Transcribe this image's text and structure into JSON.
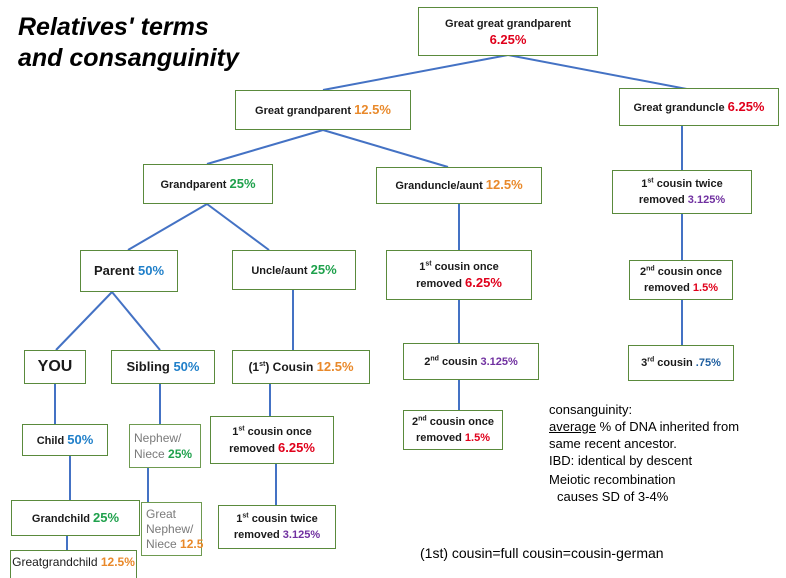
{
  "title": {
    "line1": "Relatives' terms",
    "line2": "and consanguinity"
  },
  "nodes": {
    "great_great_grandparent": {
      "label": "Great great grandparent",
      "pct": "6.25%"
    },
    "great_grandparent": {
      "label": "Great grandparent ",
      "pct": "12.5%"
    },
    "great_granduncle": {
      "label": "Great granduncle ",
      "pct": "6.25%"
    },
    "grandparent": {
      "label": "Grandparent ",
      "pct": "25%"
    },
    "granduncle_aunt": {
      "label": "Granduncle/aunt ",
      "pct": "12.5%"
    },
    "first_cousin_twice_removed_top": {
      "sup": "st",
      "label1": "1",
      "label2": " cousin twice",
      "label3": "removed ",
      "pct": "3.125%"
    },
    "parent": {
      "label": "Parent ",
      "pct": "50%"
    },
    "uncle_aunt": {
      "label": "Uncle/aunt ",
      "pct": "25%"
    },
    "first_cousin_once_removed_mid": {
      "sup": "st",
      "label1": "1",
      "label2": " cousin once",
      "label3": "removed ",
      "pct": "6.25%"
    },
    "second_cousin_once_removed_right": {
      "sup": "nd",
      "label1": "2",
      "label2": " cousin once",
      "label3": "removed ",
      "pct": "1.5%"
    },
    "you": {
      "label": "YOU"
    },
    "sibling": {
      "label": "Sibling ",
      "pct": "50%"
    },
    "first_cousin": {
      "pre": "(1",
      "sup": "st",
      "post": ") Cousin ",
      "pct": "12.5%"
    },
    "second_cousin": {
      "sup": "nd",
      "label1": "2",
      "label2": " cousin ",
      "pct": "3.125%"
    },
    "third_cousin": {
      "sup": "rd",
      "label1": "3",
      "label2": " cousin ",
      "pct": ".75%"
    },
    "child": {
      "label": "Child ",
      "pct": "50%"
    },
    "nephew_niece": {
      "label1": "Nephew/",
      "label2": "Niece ",
      "pct": "25%"
    },
    "first_cousin_once_removed_low": {
      "sup": "st",
      "label1": "1",
      "label2": " cousin once",
      "label3": "removed ",
      "pct": "6.25%"
    },
    "second_cousin_once_removed_low": {
      "sup": "nd",
      "label1": "2",
      "label2": " cousin once",
      "label3": "removed ",
      "pct": "1.5%"
    },
    "grandchild": {
      "label": "Grandchild ",
      "pct": "25%"
    },
    "great_nephew_niece": {
      "label1": "Great",
      "label2": "Nephew/",
      "label3": "Niece ",
      "pct": "12.5"
    },
    "first_cousin_twice_removed_low": {
      "sup": "st",
      "label1": "1",
      "label2": " cousin twice",
      "label3": "removed ",
      "pct": "3.125%"
    },
    "great_grandchild": {
      "label": "Greatgrandchild ",
      "pct": "12.5%"
    }
  },
  "notes": {
    "line1": "consanguinity:",
    "line2_u": "average",
    "line2_rest": " % of DNA inherited from",
    "line3": "same recent ancestor.",
    "line4": "IBD: identical by descent",
    "line5": "Meiotic recombination",
    "line6": "causes SD of 3-4%",
    "footer": "(1st) cousin=full cousin=cousin-german"
  },
  "colors": {
    "box_border": "#5a8a3c",
    "connector": "#4472c4",
    "red": "#e0001b",
    "orange": "#e9892a",
    "green": "#1fa14c",
    "blue": "#1f7fc9",
    "purple": "#7030a0"
  }
}
